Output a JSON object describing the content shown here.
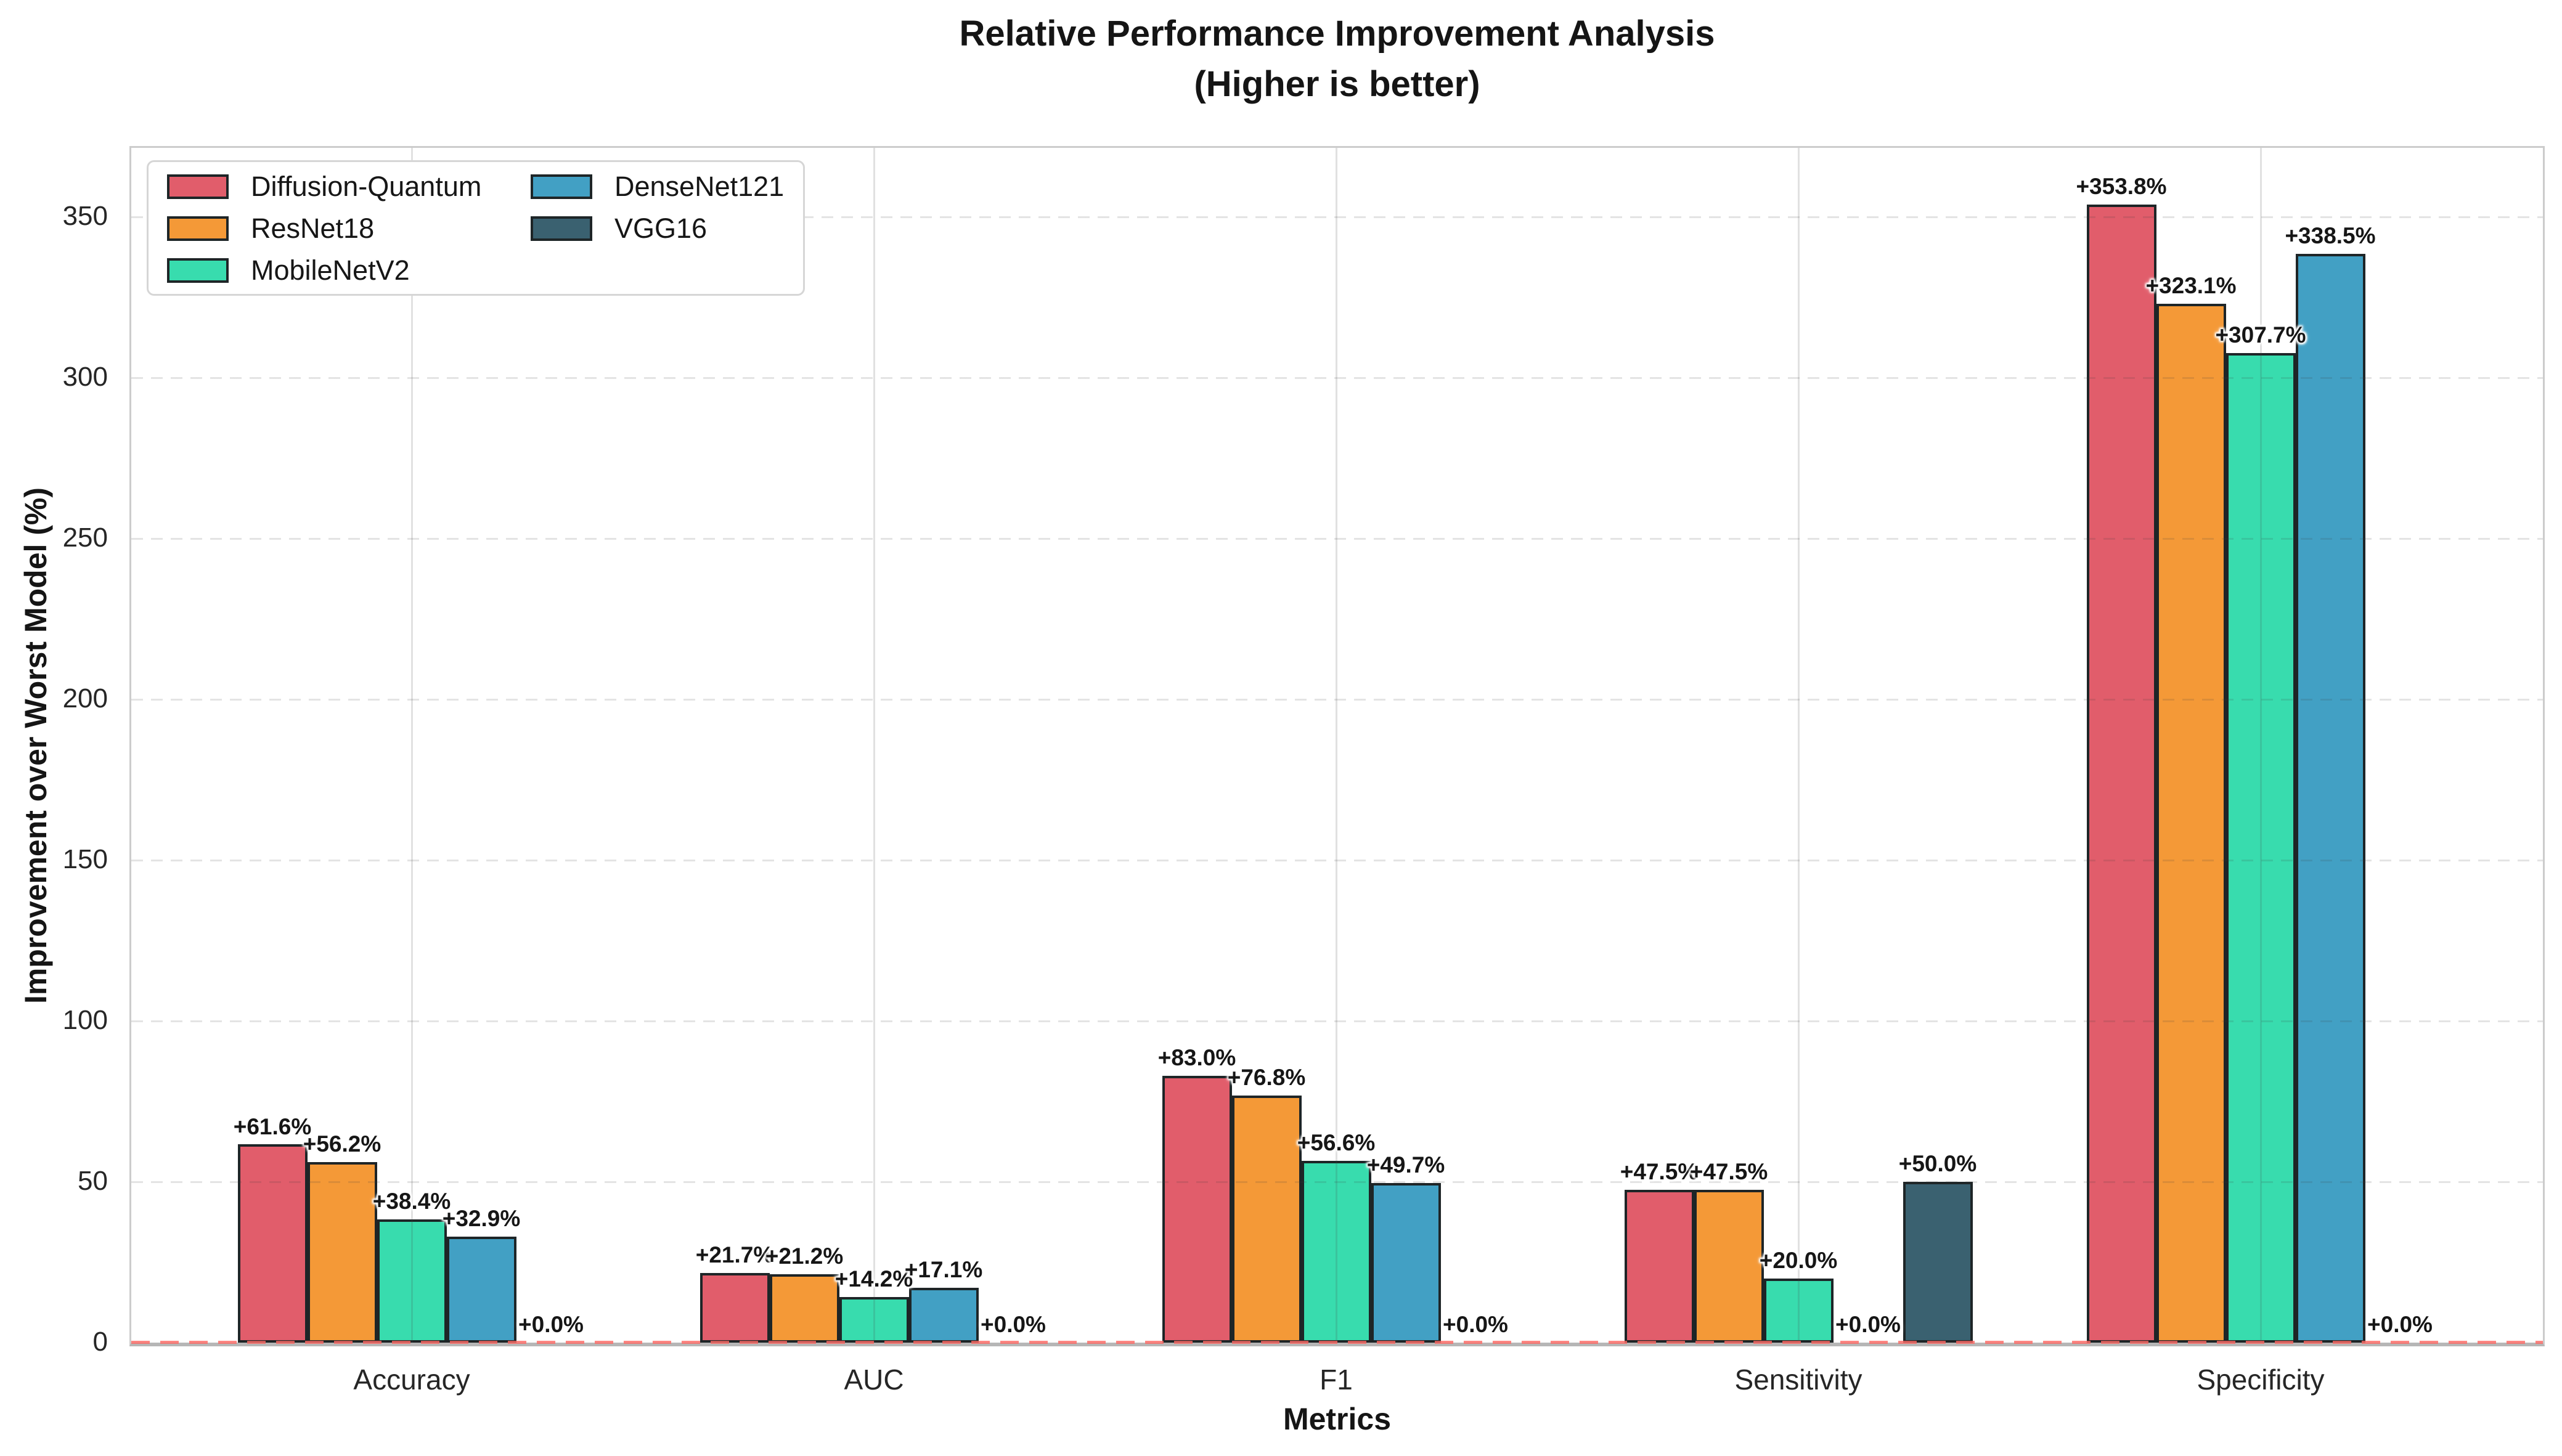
{
  "chart_data": {
    "type": "bar",
    "title": "Relative Performance Improvement Analysis",
    "subtitle": "(Higher is better)",
    "xlabel": "Metrics",
    "ylabel": "Improvement over Worst Model (%)",
    "categories": [
      "Accuracy",
      "AUC",
      "F1",
      "Sensitivity",
      "Specificity"
    ],
    "yticks": [
      0,
      50,
      100,
      150,
      200,
      250,
      300,
      350
    ],
    "ylim": [
      0,
      371.5
    ],
    "grid": "horizontal-dashed and vertical category lines",
    "legend_position": "upper-left, 2 columns",
    "series": [
      {
        "name": "Diffusion-Quantum",
        "color": "#e15d6b",
        "values": [
          61.6,
          21.7,
          83.0,
          47.5,
          353.8
        ],
        "labels": [
          "+61.6%",
          "+21.7%",
          "+83.0%",
          "+47.5%",
          "+353.8%"
        ]
      },
      {
        "name": "ResNet18",
        "color": "#f49937",
        "values": [
          56.2,
          21.2,
          76.8,
          47.5,
          323.1
        ],
        "labels": [
          "+56.2%",
          "+21.2%",
          "+76.8%",
          "+47.5%",
          "+323.1%"
        ]
      },
      {
        "name": "MobileNetV2",
        "color": "#38dcae",
        "values": [
          38.4,
          14.2,
          56.6,
          20.0,
          307.7
        ],
        "labels": [
          "+38.4%",
          "+14.2%",
          "+56.6%",
          "+20.0%",
          "+307.7%"
        ]
      },
      {
        "name": "DenseNet121",
        "color": "#42a0c4",
        "values": [
          32.9,
          17.1,
          49.7,
          0.0,
          338.5
        ],
        "labels": [
          "+32.9%",
          "+17.1%",
          "+49.7%",
          "+0.0%",
          "+338.5%"
        ]
      },
      {
        "name": "VGG16",
        "color": "#3a6170",
        "values": [
          0.0,
          0.0,
          0.0,
          50.0,
          0.0
        ],
        "labels": [
          "+0.0%",
          "+0.0%",
          "+0.0%",
          "+50.0%",
          "+0.0%"
        ]
      }
    ],
    "legend_columns": [
      [
        0,
        1,
        2
      ],
      [
        3,
        4
      ]
    ],
    "zero_line": {
      "value": 0,
      "color": "#fb6863",
      "style": "dashed"
    }
  },
  "colors": {
    "background": "#ffffff",
    "bar_edge": "#1e2527",
    "spine": "#cccccc",
    "bottom_spine": "#b6b6b6",
    "grid": "rgba(60,60,60,0.14)",
    "text": "#151515",
    "tick_text": "#262626"
  }
}
